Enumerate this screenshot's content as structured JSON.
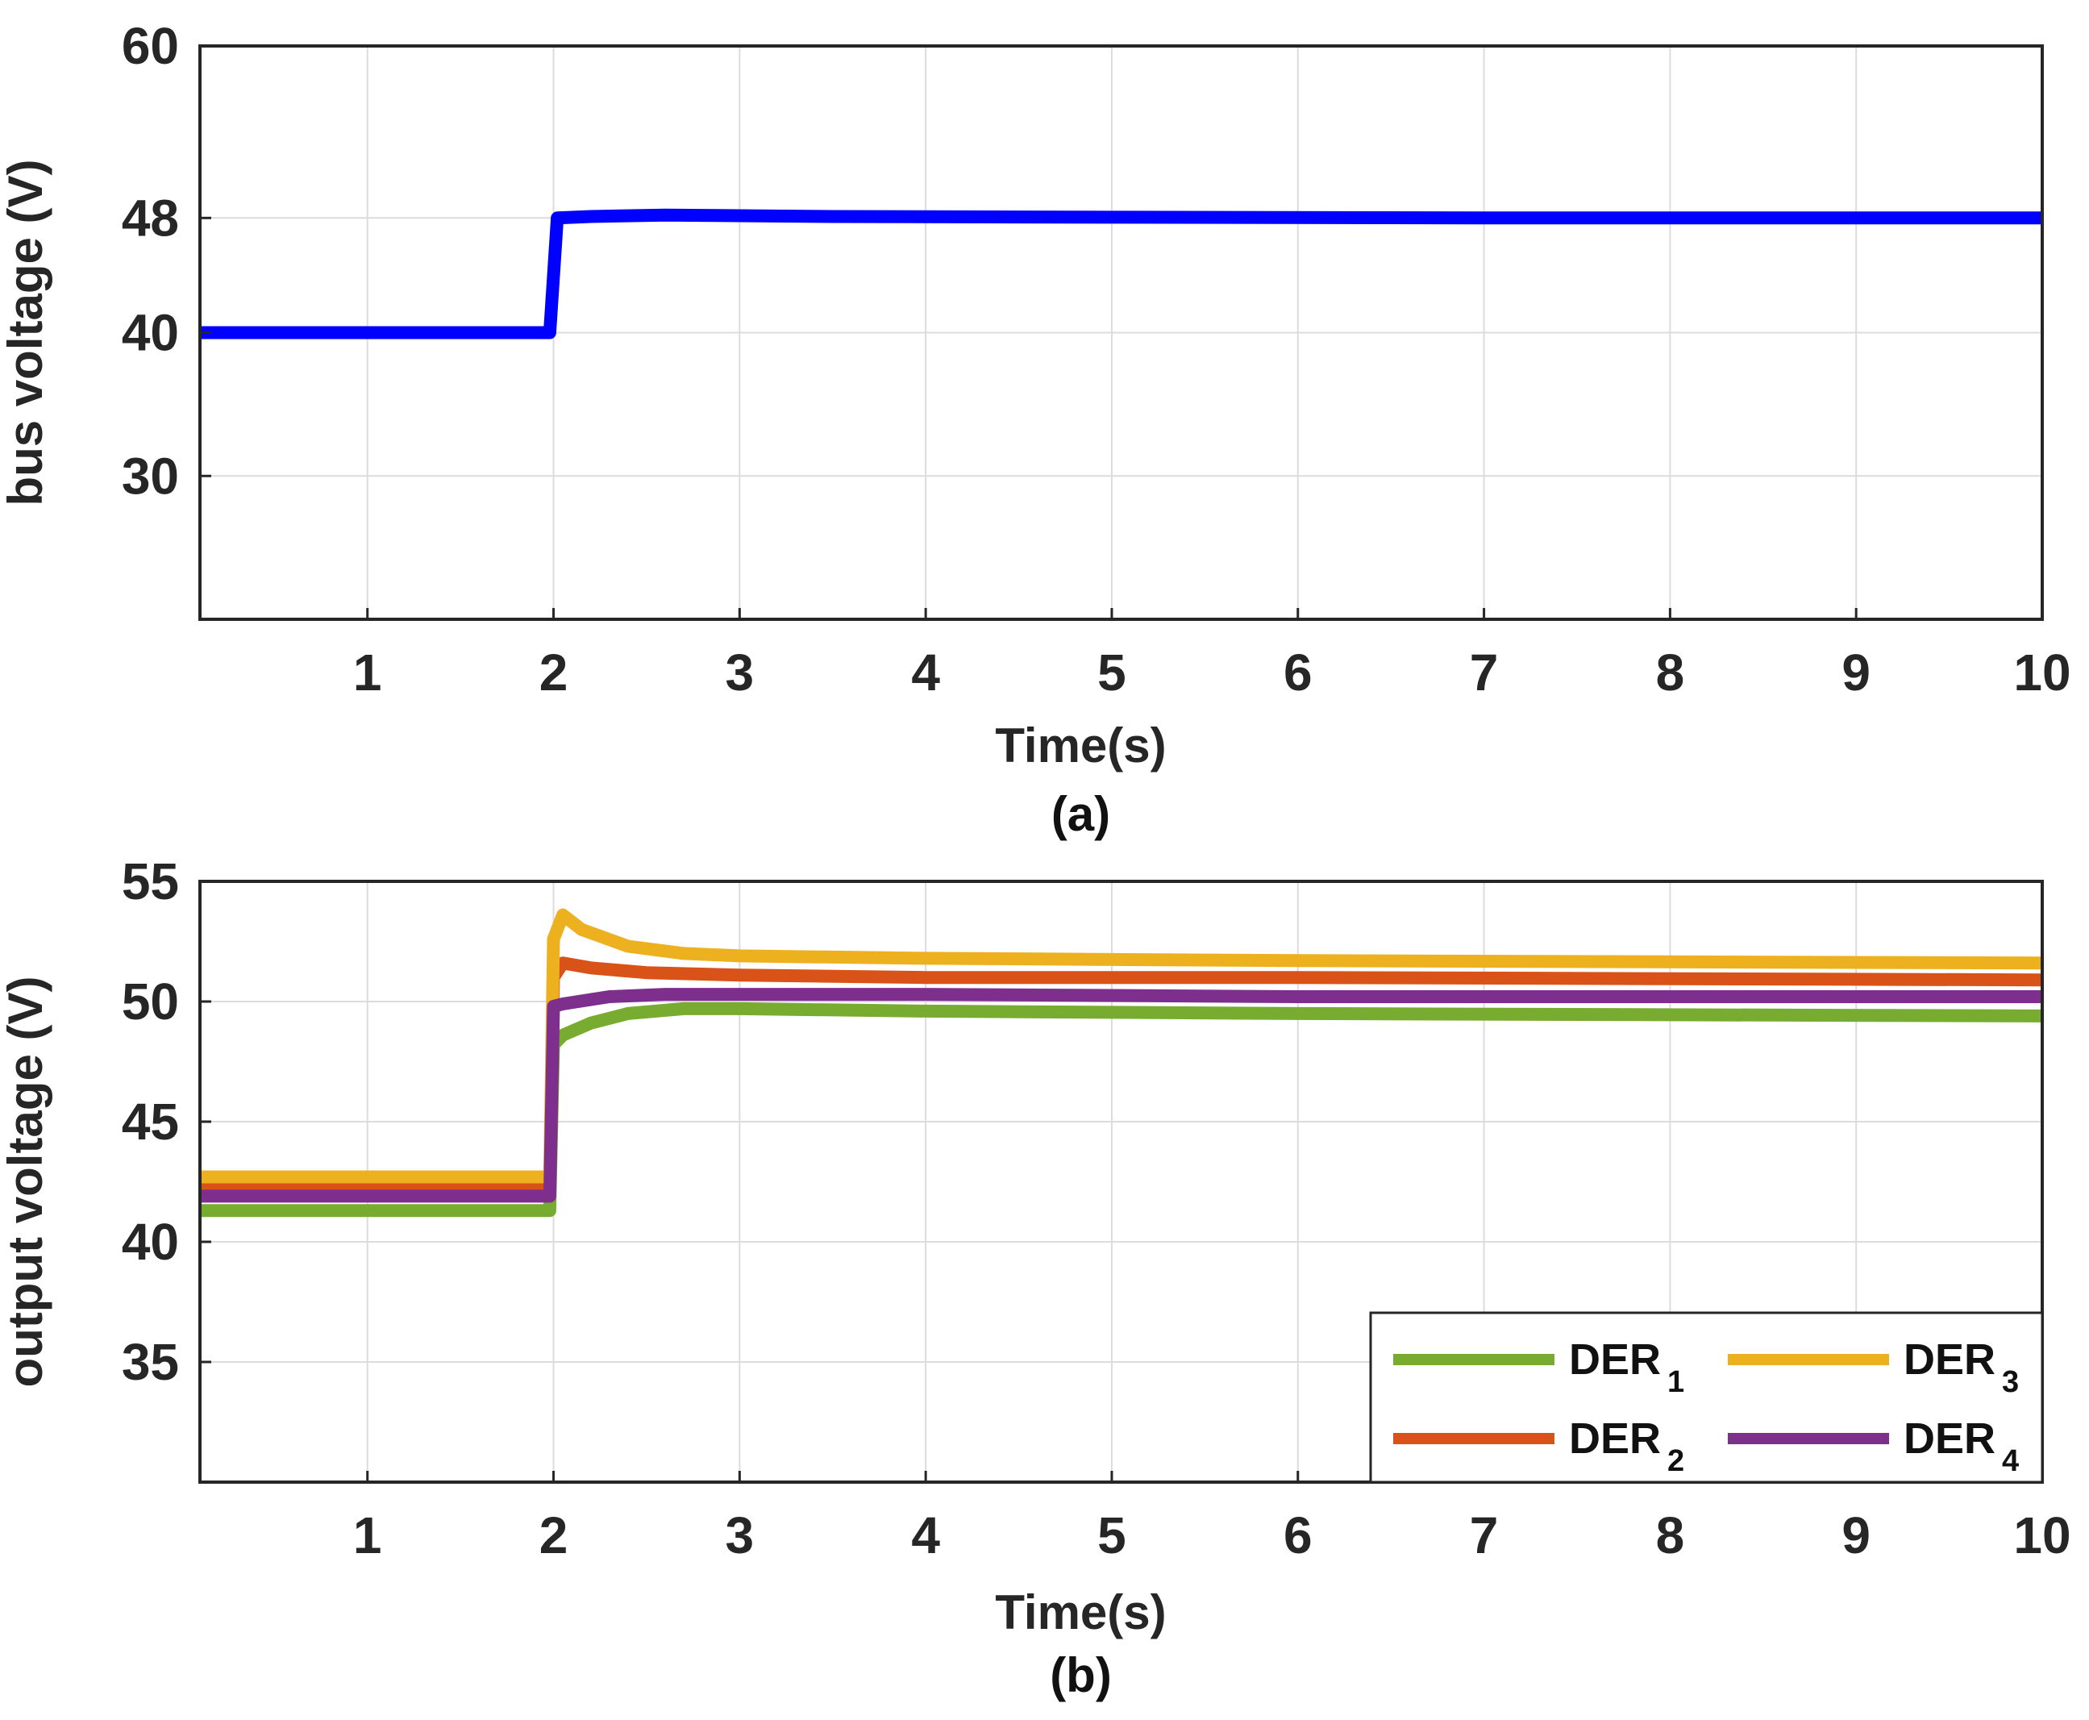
{
  "chart_data": [
    {
      "type": "line",
      "title": "",
      "caption": "(a)",
      "xlabel": "Time(s)",
      "ylabel": "bus voltage (V)",
      "xlim": [
        0.1,
        10
      ],
      "ylim": [
        20,
        60
      ],
      "xticks": [
        1,
        2,
        3,
        4,
        5,
        6,
        7,
        8,
        9,
        10
      ],
      "yticks": [
        30,
        40,
        48,
        60
      ],
      "grid": true,
      "series": [
        {
          "name": "bus voltage",
          "color": "#0000ff",
          "x": [
            0.1,
            1.98,
            2.02,
            2.2,
            2.6,
            3.5,
            5,
            7,
            10
          ],
          "y": [
            40,
            40,
            48,
            48.1,
            48.2,
            48.1,
            48.05,
            48.0,
            48.0
          ]
        }
      ]
    },
    {
      "type": "line",
      "title": "",
      "caption": "(b)",
      "xlabel": "Time(s)",
      "ylabel": "output voltage (V)",
      "xlim": [
        0.1,
        10
      ],
      "ylim": [
        30,
        55
      ],
      "xticks": [
        1,
        2,
        3,
        4,
        5,
        6,
        7,
        8,
        9,
        10
      ],
      "yticks": [
        35,
        40,
        45,
        50,
        55
      ],
      "grid": true,
      "legend_position": "bottom-right",
      "series": [
        {
          "name": "DER",
          "sub": "1",
          "color": "#77ac30",
          "x": [
            0.1,
            1.98,
            2.0,
            2.05,
            2.2,
            2.4,
            2.7,
            3.0,
            4,
            6,
            10
          ],
          "y": [
            41.3,
            41.3,
            48.2,
            48.6,
            49.1,
            49.5,
            49.7,
            49.7,
            49.6,
            49.5,
            49.4
          ]
        },
        {
          "name": "DER",
          "sub": "2",
          "color": "#d95319",
          "x": [
            0.1,
            1.98,
            2.0,
            2.05,
            2.2,
            2.5,
            3.0,
            4,
            6,
            10
          ],
          "y": [
            42.2,
            42.2,
            51.0,
            51.6,
            51.4,
            51.2,
            51.1,
            51.0,
            51.0,
            50.9
          ],
          "y_note": ""
        },
        {
          "name": "DER",
          "sub": "3",
          "color": "#edb120",
          "x": [
            0.1,
            1.98,
            2.0,
            2.05,
            2.15,
            2.4,
            2.7,
            3.0,
            4,
            6,
            10
          ],
          "y": [
            42.7,
            42.7,
            52.6,
            53.6,
            53.0,
            52.3,
            52.0,
            51.9,
            51.8,
            51.7,
            51.6
          ]
        },
        {
          "name": "DER",
          "sub": "4",
          "color": "#7e2f8e",
          "x": [
            0.1,
            1.98,
            2.0,
            2.05,
            2.3,
            2.6,
            3.0,
            4,
            6,
            10
          ],
          "y": [
            41.9,
            41.9,
            49.8,
            49.9,
            50.2,
            50.3,
            50.3,
            50.3,
            50.2,
            50.2
          ]
        }
      ]
    }
  ]
}
